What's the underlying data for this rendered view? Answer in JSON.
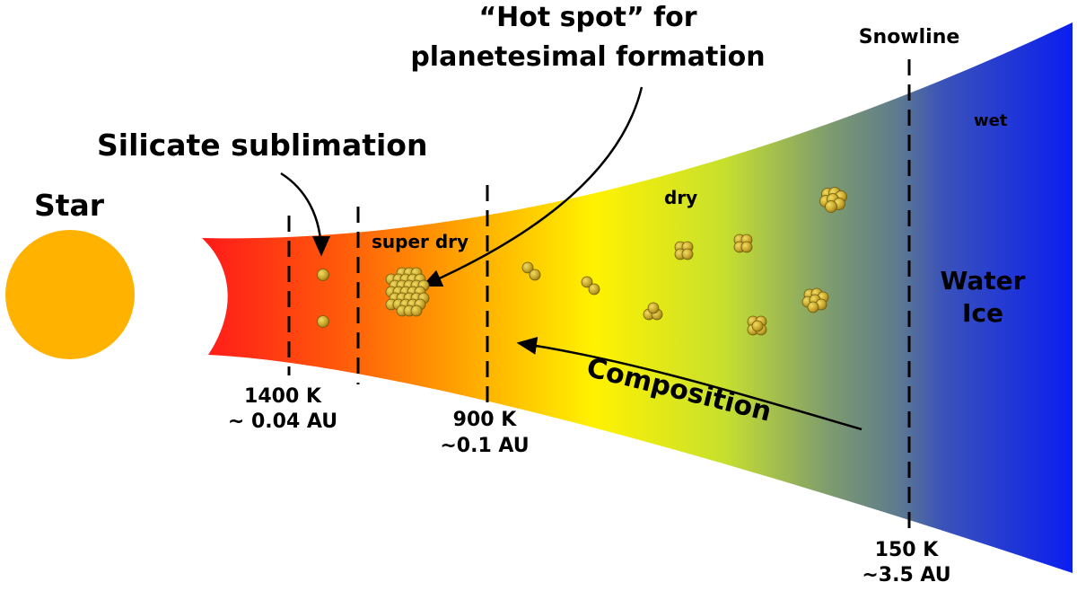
{
  "star": {
    "label": "Star",
    "color": "#FFB300"
  },
  "callouts": {
    "silicate": "Silicate sublimation",
    "hotspot_line1": "“Hot spot” for",
    "hotspot_line2": "planetesimal formation",
    "composition": "Composition"
  },
  "boundaries": {
    "silicate": {
      "temp": "1400 K",
      "dist": "~ 0.04 AU"
    },
    "hotspot": {
      "temp": "900 K",
      "dist": "~0.1 AU"
    },
    "snowline": {
      "title": "Snowline",
      "temp": "150 K",
      "dist": "~3.5 AU"
    }
  },
  "zones": {
    "super_dry": "super dry",
    "dry": "dry",
    "wet": "wet",
    "ice_line1": "Water",
    "ice_line2": "Ice"
  },
  "colors": {
    "hot": "#FF1A1A",
    "orange": "#FF8C00",
    "yellow": "#FFF200",
    "green": "#C7E02E",
    "slate": "#5E7A8E",
    "cold": "#0A1EF0",
    "grain": "#B89A1C"
  }
}
